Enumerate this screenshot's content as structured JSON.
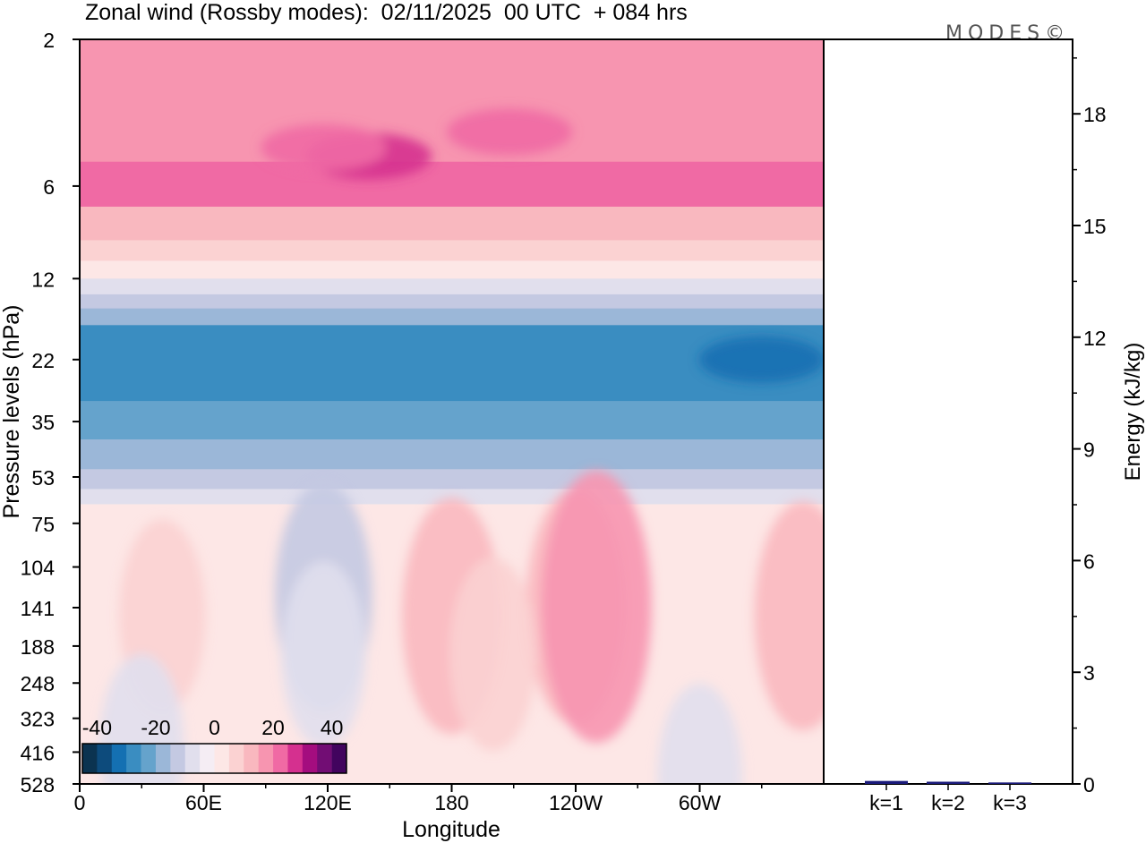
{
  "chart_data": [
    {
      "type": "heatmap",
      "title": "Zonal wind (Rossby modes):  02/11/2025  00 UTC  + 084 hrs",
      "xlabel": "Longitude",
      "ylabel": "Pressure levels (hPa)",
      "x_ticks": [
        "0",
        "60E",
        "120E",
        "180",
        "120W",
        "60W"
      ],
      "y_ticks": [
        "2",
        "6",
        "12",
        "22",
        "35",
        "53",
        "75",
        "104",
        "141",
        "188",
        "248",
        "323",
        "416",
        "528"
      ],
      "x_range_deg": [
        0,
        360
      ],
      "colorbar": {
        "ticks": [
          "-40",
          "-20",
          "0",
          "20",
          "40"
        ],
        "range": [
          -45,
          45
        ],
        "step": 5,
        "colors": [
          "#0b3350",
          "#0d4b7c",
          "#1470b2",
          "#3a8dc1",
          "#65a3cc",
          "#9bb7d8",
          "#c4c9e2",
          "#e1dfed",
          "#f5edf4",
          "#fde7e6",
          "#fbd2d2",
          "#f9b8bf",
          "#f795b0",
          "#f06aa4",
          "#d5308f",
          "#a40d7f",
          "#720d74",
          "#42045e"
        ]
      },
      "field_bands": [
        {
          "from_hPa": 2,
          "to_hPa": 5,
          "value": 18
        },
        {
          "from_hPa": 5,
          "to_hPa": 7,
          "value": 22
        },
        {
          "from_hPa": 7,
          "to_hPa": 9,
          "value": 14
        },
        {
          "from_hPa": 9,
          "to_hPa": 10.5,
          "value": 8
        },
        {
          "from_hPa": 10.5,
          "to_hPa": 12,
          "value": 2
        },
        {
          "from_hPa": 12,
          "to_hPa": 13.5,
          "value": -8
        },
        {
          "from_hPa": 13.5,
          "to_hPa": 15,
          "value": -14
        },
        {
          "from_hPa": 15,
          "to_hPa": 17,
          "value": -20
        },
        {
          "from_hPa": 17,
          "to_hPa": 30,
          "value": -27
        },
        {
          "from_hPa": 30,
          "to_hPa": 40,
          "value": -22
        },
        {
          "from_hPa": 40,
          "to_hPa": 50,
          "value": -17
        },
        {
          "from_hPa": 50,
          "to_hPa": 58,
          "value": -12
        },
        {
          "from_hPa": 58,
          "to_hPa": 65,
          "value": -7
        },
        {
          "from_hPa": 65,
          "to_hPa": 528,
          "value": 1
        }
      ],
      "field_blobs": [
        {
          "lon": 140,
          "hPa": 4.8,
          "value": 27
        },
        {
          "lon": 208,
          "hPa": 4,
          "value": 22
        },
        {
          "lon": 118,
          "hPa": 4.5,
          "value": 22
        },
        {
          "lon": 330,
          "hPa": 22,
          "value": -32
        },
        {
          "lon": 118,
          "hPa": 130,
          "value": -12
        },
        {
          "lon": 118,
          "hPa": 200,
          "value": -6
        },
        {
          "lon": 180,
          "hPa": 150,
          "value": 13
        },
        {
          "lon": 240,
          "hPa": 140,
          "value": 13
        },
        {
          "lon": 250,
          "hPa": 140,
          "value": 18
        },
        {
          "lon": 350,
          "hPa": 150,
          "value": 12
        },
        {
          "lon": 40,
          "hPa": 150,
          "value": 7
        },
        {
          "lon": 200,
          "hPa": 200,
          "value": 7
        },
        {
          "lon": 30,
          "hPa": 400,
          "value": -6
        },
        {
          "lon": 300,
          "hPa": 500,
          "value": -6
        }
      ]
    },
    {
      "type": "bar",
      "categories": [
        "k=1",
        "k=2",
        "k=3"
      ],
      "values": [
        0.08,
        0.06,
        0.04
      ],
      "ylabel": "Energy (kJ/kg)",
      "y_ticks": [
        "0",
        "3",
        "6",
        "9",
        "12",
        "15",
        "18"
      ],
      "ylim": [
        0,
        20
      ],
      "bar_color": "#1a1a7a"
    }
  ],
  "watermark": "MODES©"
}
